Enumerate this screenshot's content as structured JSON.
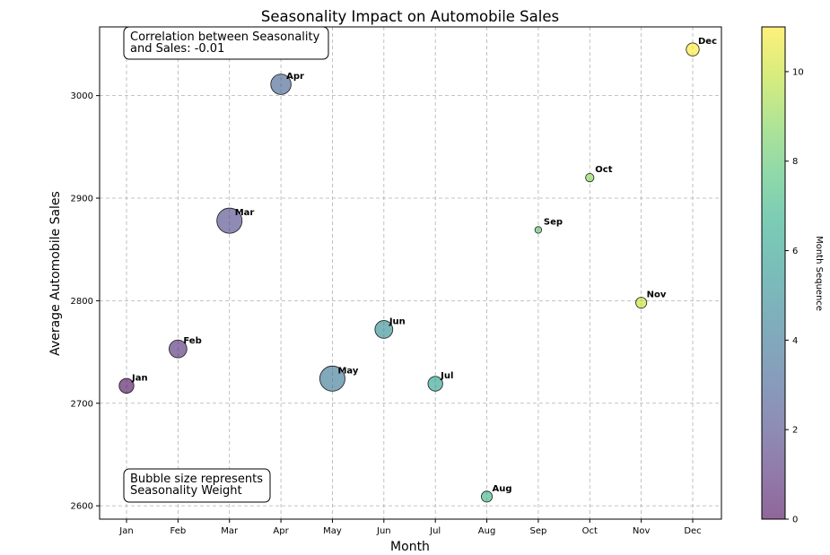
{
  "chart_data": {
    "type": "scatter",
    "title": "Seasonality Impact on Automobile Sales",
    "xlabel": "Month",
    "ylabel": "Average Automobile Sales",
    "categories": [
      "Jan",
      "Feb",
      "Mar",
      "Apr",
      "May",
      "Jun",
      "Jul",
      "Aug",
      "Sep",
      "Oct",
      "Nov",
      "Dec"
    ],
    "ylim": [
      2587,
      3067
    ],
    "yticks": [
      2600,
      2700,
      2800,
      2900,
      3000
    ],
    "grid": true,
    "points": [
      {
        "month": "Jan",
        "seq": 0,
        "sales": 2717,
        "weight": 0.8
      },
      {
        "month": "Feb",
        "seq": 1,
        "sales": 2753,
        "weight": 1.2
      },
      {
        "month": "Mar",
        "seq": 2,
        "sales": 2878,
        "weight": 2.5
      },
      {
        "month": "Apr",
        "seq": 3,
        "sales": 3011,
        "weight": 1.6
      },
      {
        "month": "May",
        "seq": 4,
        "sales": 2724,
        "weight": 2.5
      },
      {
        "month": "Jun",
        "seq": 5,
        "sales": 2772,
        "weight": 1.2
      },
      {
        "month": "Jul",
        "seq": 6,
        "sales": 2719,
        "weight": 0.8
      },
      {
        "month": "Aug",
        "seq": 7,
        "sales": 2609,
        "weight": 0.4
      },
      {
        "month": "Sep",
        "seq": 8,
        "sales": 2869,
        "weight": 0.1
      },
      {
        "month": "Oct",
        "seq": 9,
        "sales": 2920,
        "weight": 0.2
      },
      {
        "month": "Nov",
        "seq": 10,
        "sales": 2798,
        "weight": 0.4
      },
      {
        "month": "Dec",
        "seq": 11,
        "sales": 3045,
        "weight": 0.6
      }
    ],
    "annotations": {
      "correlation_line1": "Correlation between Seasonality",
      "correlation_line2": "and Sales: -0.01",
      "bubble_line1": "Bubble size represents",
      "bubble_line2": "Seasonality Weight"
    },
    "colorbar": {
      "label": "Month Sequence",
      "colormap": "viridis",
      "range": [
        0,
        11
      ],
      "ticks": [
        0,
        2,
        4,
        6,
        8,
        10
      ]
    }
  }
}
